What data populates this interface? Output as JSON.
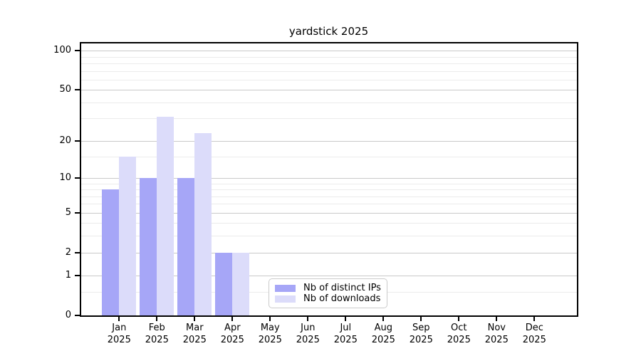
{
  "chart_data": {
    "type": "bar",
    "title": "yardstick 2025",
    "categories": [
      "Jan 2025",
      "Feb 2025",
      "Mar 2025",
      "Apr 2025",
      "May 2025",
      "Jun 2025",
      "Jul 2025",
      "Aug 2025",
      "Sep 2025",
      "Oct 2025",
      "Nov 2025",
      "Dec 2025"
    ],
    "x_tick_month": [
      "Jan",
      "Feb",
      "Mar",
      "Apr",
      "May",
      "Jun",
      "Jul",
      "Aug",
      "Sep",
      "Oct",
      "Nov",
      "Dec"
    ],
    "x_tick_year": "2025",
    "series": [
      {
        "name": "Nb of distinct IPs",
        "color": "#a6a6f7",
        "values": [
          8,
          10,
          10,
          2,
          0,
          0,
          0,
          0,
          0,
          0,
          0,
          0
        ]
      },
      {
        "name": "Nb of downloads",
        "color": "#dcdcfa",
        "values": [
          15,
          31,
          23,
          2,
          0,
          0,
          0,
          0,
          0,
          0,
          0,
          0
        ]
      }
    ],
    "yscale": "log1p",
    "ylim": [
      0,
      113
    ],
    "y_major_ticks": [
      0,
      1,
      2,
      5,
      10,
      20,
      50,
      100
    ],
    "y_minor_ticks": [
      0.5,
      3,
      4,
      6,
      7,
      8,
      9,
      15,
      30,
      40,
      60,
      70,
      80,
      90
    ],
    "grid": true,
    "legend_position": "lower center",
    "xlabel": "",
    "ylabel": ""
  },
  "colors": {
    "background": "#ffffff",
    "axis": "#000000",
    "text": "#000000",
    "major_grid": "#c9c9c9",
    "minor_grid": "#ebebeb",
    "legend_border": "#cbcbcb"
  }
}
